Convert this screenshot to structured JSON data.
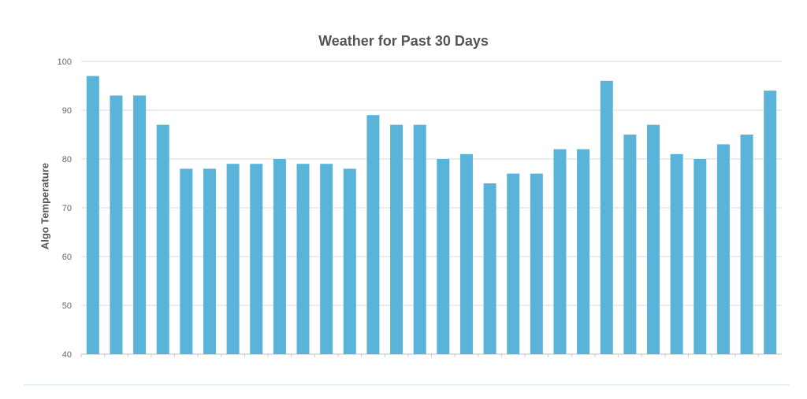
{
  "chart_data": {
    "type": "bar",
    "title": "Weather for Past 30 Days",
    "xlabel": "",
    "ylabel": "Algo Temperature",
    "ylim": [
      40,
      100
    ],
    "yticks": [
      40,
      50,
      60,
      70,
      80,
      90,
      100
    ],
    "grid": true,
    "legend": "none",
    "bar_color": "#5ab4da",
    "grid_color": "#d9d9d9",
    "values": [
      97,
      93,
      93,
      87,
      78,
      78,
      79,
      79,
      80,
      79,
      79,
      78,
      89,
      87,
      87,
      80,
      81,
      75,
      77,
      77,
      82,
      82,
      96,
      85,
      87,
      81,
      80,
      83,
      85,
      94
    ]
  }
}
